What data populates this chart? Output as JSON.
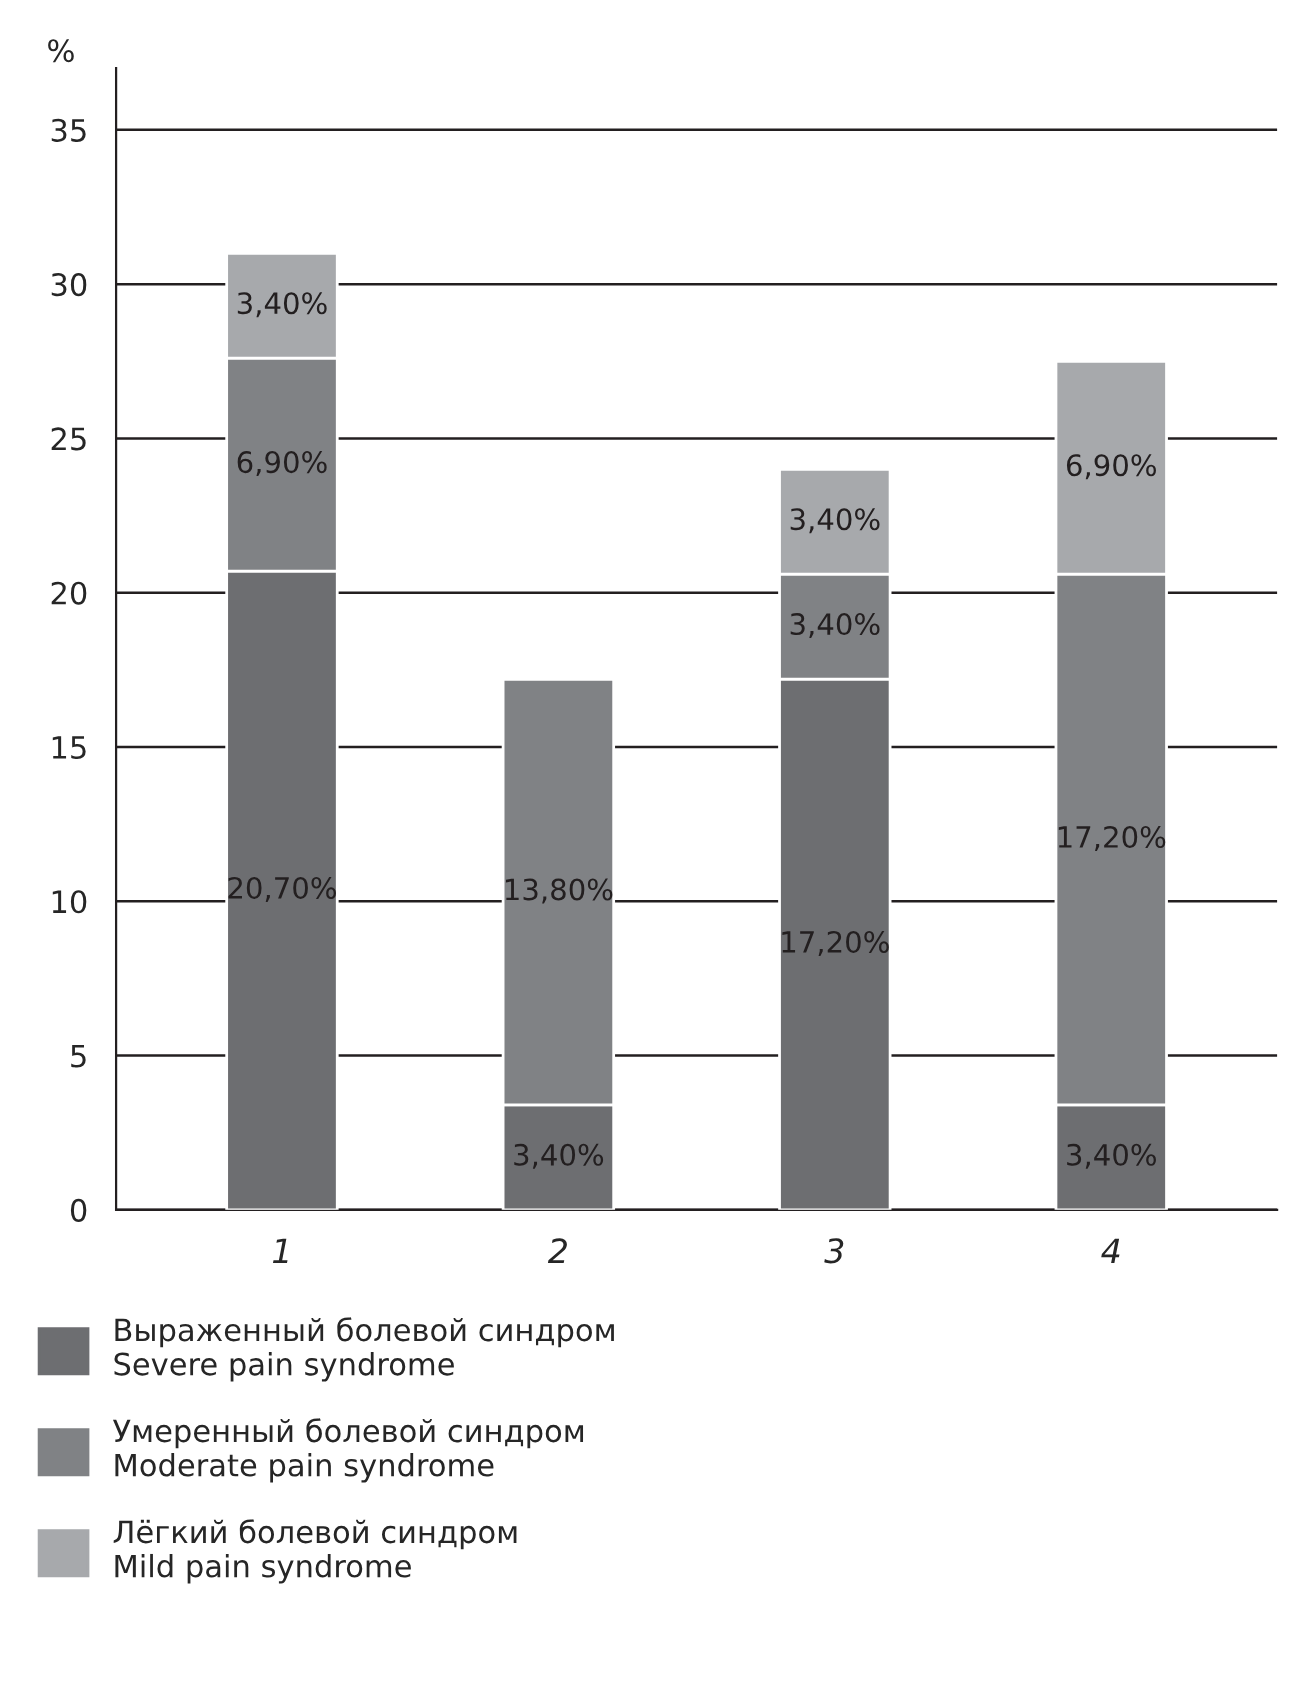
{
  "chart_data": {
    "type": "bar",
    "stacked": true,
    "ylabel": "%",
    "categories": [
      "1",
      "2",
      "3",
      "4"
    ],
    "series": [
      {
        "name": "Выраженный болевой синдром\nSevere pain syndrome",
        "color": "#6d6e71",
        "values": [
          20.7,
          3.4,
          17.2,
          3.4
        ],
        "value_labels": [
          "20,70%",
          "3,40%",
          "17,20%",
          "3,40%"
        ]
      },
      {
        "name": "Умеренный болевой синдром\nModerate pain syndrome",
        "color": "#808285",
        "values": [
          6.9,
          13.8,
          3.4,
          17.2
        ],
        "value_labels": [
          "6,90%",
          "13,80%",
          "3,40%",
          "17,20%"
        ]
      },
      {
        "name": "Лёгкий болевой синдром\nMild pain syndrome",
        "color": "#a7a9ac",
        "values": [
          3.4,
          null,
          3.4,
          6.9
        ],
        "value_labels": [
          "3,40%",
          null,
          "3,40%",
          "6,90%"
        ]
      }
    ],
    "ylim": [
      0,
      37
    ],
    "yticks": [
      0,
      5,
      10,
      15,
      20,
      25,
      30,
      35
    ],
    "grid": "y",
    "legend": "bottom"
  }
}
